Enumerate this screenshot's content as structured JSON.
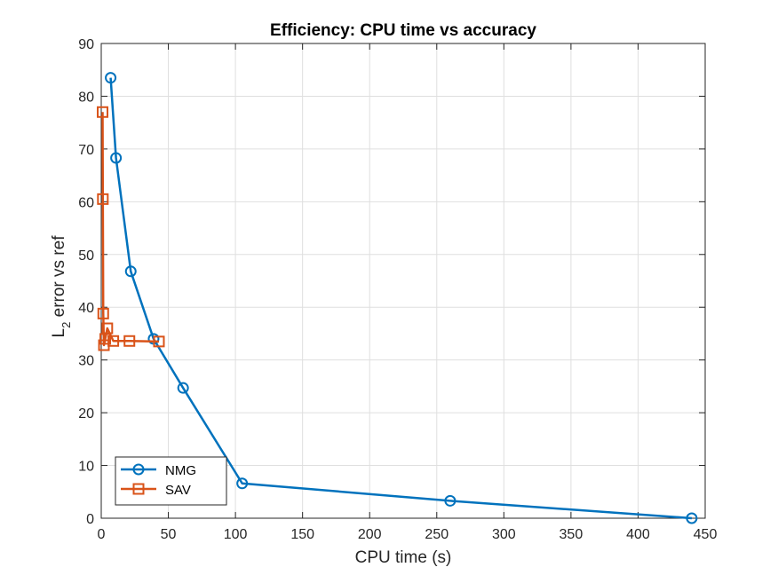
{
  "chart_data": {
    "type": "line",
    "title": "Efficiency: CPU time vs accuracy",
    "xlabel": "CPU time (s)",
    "ylabel_main": "L",
    "ylabel_sub": "2",
    "ylabel_rest": " error vs ref",
    "xlim": [
      0,
      450
    ],
    "ylim": [
      0,
      90
    ],
    "xticks": [
      0,
      50,
      100,
      150,
      200,
      250,
      300,
      350,
      400,
      450
    ],
    "yticks": [
      0,
      10,
      20,
      30,
      40,
      50,
      60,
      70,
      80,
      90
    ],
    "grid": true,
    "legend_position": "bottom-left",
    "series": [
      {
        "name": "NMG",
        "color": "#0072BD",
        "marker": "circle",
        "x": [
          7,
          11,
          22,
          39,
          61,
          105,
          260,
          440
        ],
        "y": [
          83.5,
          68.3,
          46.8,
          34.0,
          24.7,
          6.6,
          3.3,
          0.0
        ]
      },
      {
        "name": "SAV",
        "color": "#D95319",
        "marker": "square",
        "x": [
          1.0,
          1.2,
          1.5,
          2.0,
          3.0,
          4.5,
          9.0,
          21.0,
          43.0
        ],
        "y": [
          77.0,
          60.5,
          38.8,
          32.8,
          34.0,
          36.0,
          33.6,
          33.6,
          33.5
        ]
      }
    ]
  }
}
